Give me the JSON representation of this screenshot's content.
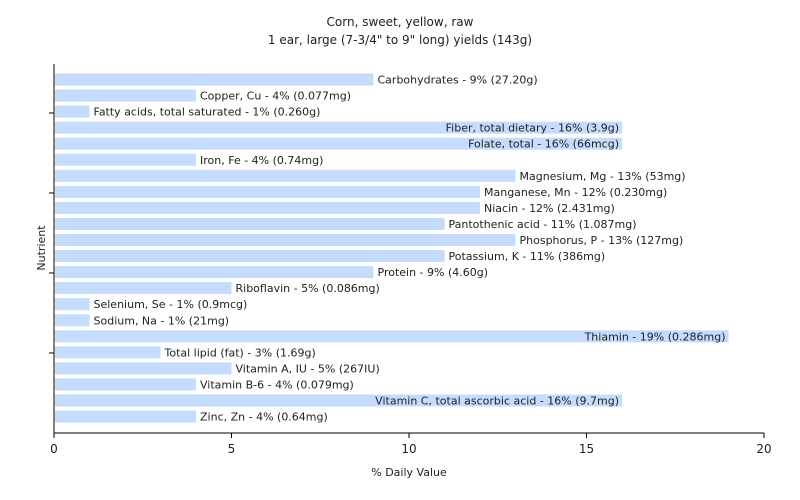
{
  "chart_data": {
    "type": "bar",
    "orientation": "horizontal",
    "title": "Corn, sweet, yellow, raw",
    "subtitle": "1 ear, large (7-3/4\" to 9\" long) yields (143g)",
    "xlabel": "% Daily Value",
    "ylabel": "Nutrient",
    "xlim": [
      0,
      20
    ],
    "xticks": [
      0,
      5,
      10,
      15,
      20
    ],
    "grid": false,
    "bar_color": "#c6dcfc",
    "categories": [
      "Carbohydrates",
      "Copper, Cu",
      "Fatty acids, total saturated",
      "Fiber, total dietary",
      "Folate, total",
      "Iron, Fe",
      "Magnesium, Mg",
      "Manganese, Mn",
      "Niacin",
      "Pantothenic acid",
      "Phosphorus, P",
      "Potassium, K",
      "Protein",
      "Riboflavin",
      "Selenium, Se",
      "Sodium, Na",
      "Thiamin",
      "Total lipid (fat)",
      "Vitamin A, IU",
      "Vitamin B-6",
      "Vitamin C, total ascorbic acid",
      "Zinc, Zn"
    ],
    "values": [
      9,
      4,
      1,
      16,
      16,
      4,
      13,
      12,
      12,
      11,
      13,
      11,
      9,
      5,
      1,
      1,
      19,
      3,
      5,
      4,
      16,
      4
    ],
    "labels": [
      "Carbohydrates - 9% (27.20g)",
      "Copper, Cu - 4% (0.077mg)",
      "Fatty acids, total saturated - 1% (0.260g)",
      "Fiber, total dietary - 16% (3.9g)",
      "Folate, total - 16% (66mcg)",
      "Iron, Fe - 4% (0.74mg)",
      "Magnesium, Mg - 13% (53mg)",
      "Manganese, Mn - 12% (0.230mg)",
      "Niacin - 12% (2.431mg)",
      "Pantothenic acid - 11% (1.087mg)",
      "Phosphorus, P - 13% (127mg)",
      "Potassium, K - 11% (386mg)",
      "Protein - 9% (4.60g)",
      "Riboflavin - 5% (0.086mg)",
      "Selenium, Se - 1% (0.9mcg)",
      "Sodium, Na - 1% (21mg)",
      "Thiamin - 19% (0.286mg)",
      "Total lipid (fat) - 3% (1.69g)",
      "Vitamin A, IU - 5% (267IU)",
      "Vitamin B-6 - 4% (0.079mg)",
      "Vitamin C, total ascorbic acid - 16% (9.7mg)",
      "Zinc, Zn - 4% (0.64mg)"
    ]
  }
}
